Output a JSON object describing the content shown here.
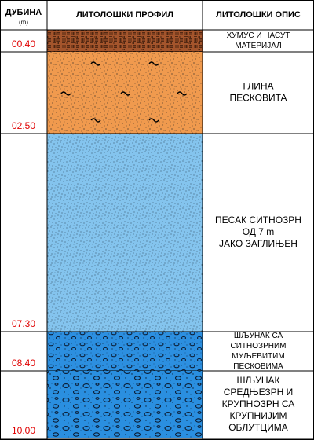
{
  "header": {
    "depth": "ДУБИНА",
    "unit": "(m)",
    "profile": "ЛИТОЛОШКИ ПРОФИЛ",
    "description": "ЛИТОЛОШКИ ОПИС"
  },
  "layers": [
    {
      "depth": "00.40",
      "description": [
        "ХУМУС И НАСУТ",
        "МАТЕРИЈАЛ"
      ]
    },
    {
      "depth": "02.50",
      "description": [
        "ГЛИНА",
        "ПЕСКОВИТА"
      ]
    },
    {
      "depth": "07.30",
      "description": [
        "ПЕСАК СИТНОЗРН",
        "ОД 7 m",
        "ЈАКО ЗАГЛИЊЕН"
      ]
    },
    {
      "depth": "08.40",
      "description": [
        "ШЉУНАК СА",
        "СИТНОЗРНИМ",
        "МУЉЕВИТИМ",
        "ПЕСКОВИМА"
      ]
    },
    {
      "depth": "10.00",
      "description": [
        "ШЉУНАК",
        "СРЕДЊЕЗРН И",
        "КРУПНОЗРН СА",
        "КРУПНИЈИМ",
        "ОБЛУТЦИМА"
      ]
    }
  ]
}
